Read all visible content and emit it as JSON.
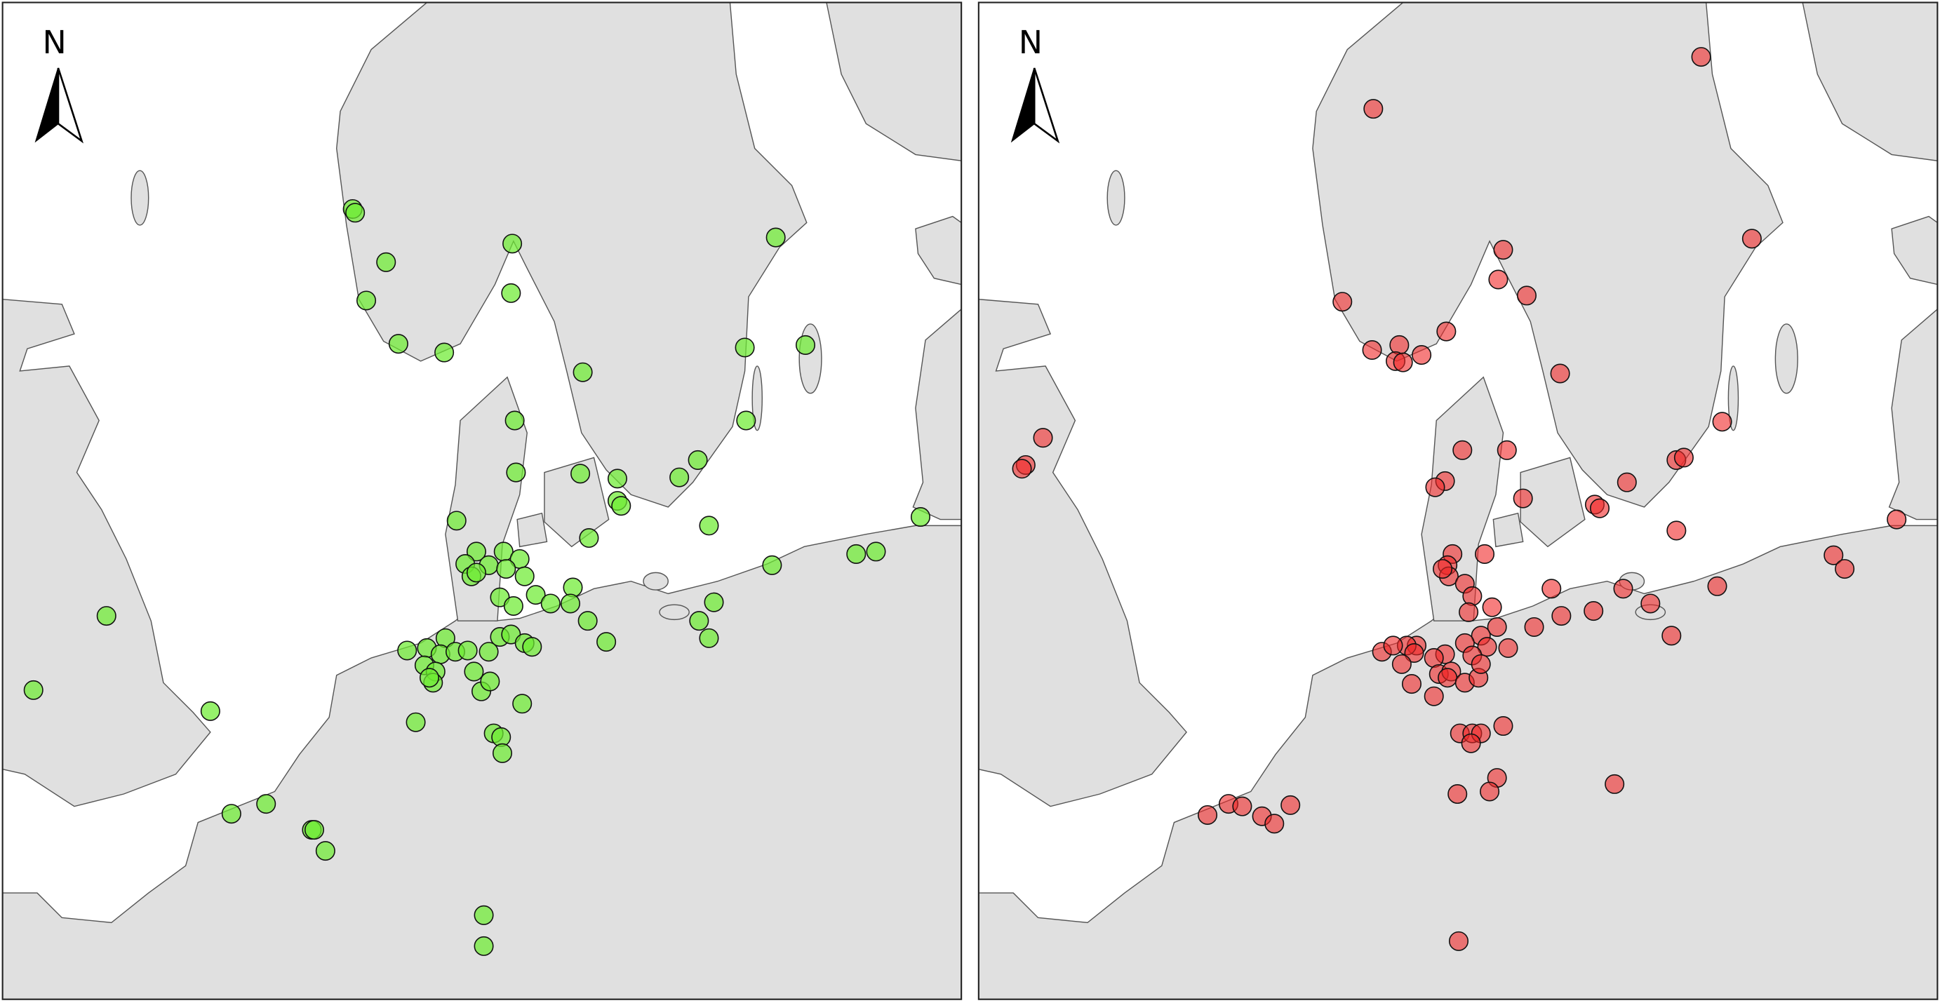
{
  "panels": [
    {
      "compass_label": "N"
    },
    {
      "compass_label": "N"
    }
  ]
}
